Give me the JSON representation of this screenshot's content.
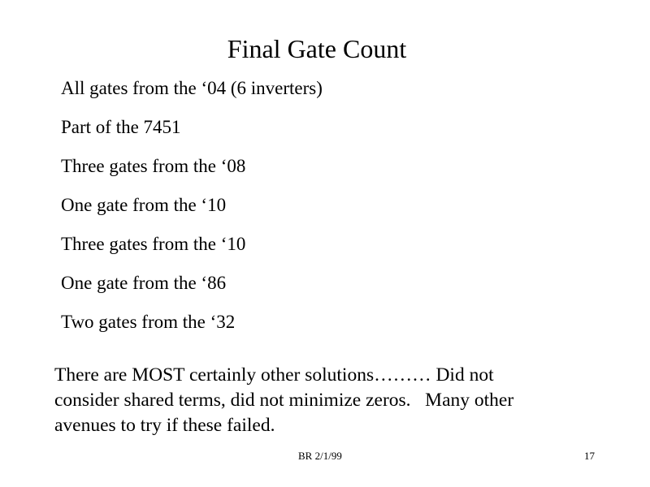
{
  "title": "Final Gate Count",
  "items": [
    "All gates from the ‘04  (6 inverters)",
    "Part of the 7451",
    "Three gates from the ‘08",
    "One gate from the ‘10",
    "Three gates from the ‘10",
    "One gate from the ‘86",
    "Two gates from the ‘32"
  ],
  "note_lines": [
    "There are MOST certainly other solutions……… Did not",
    "consider shared terms, did not minimize zeros.   Many other",
    "avenues to try if these failed."
  ],
  "footer": {
    "center": "BR 2/1/99",
    "page_number": "17"
  }
}
